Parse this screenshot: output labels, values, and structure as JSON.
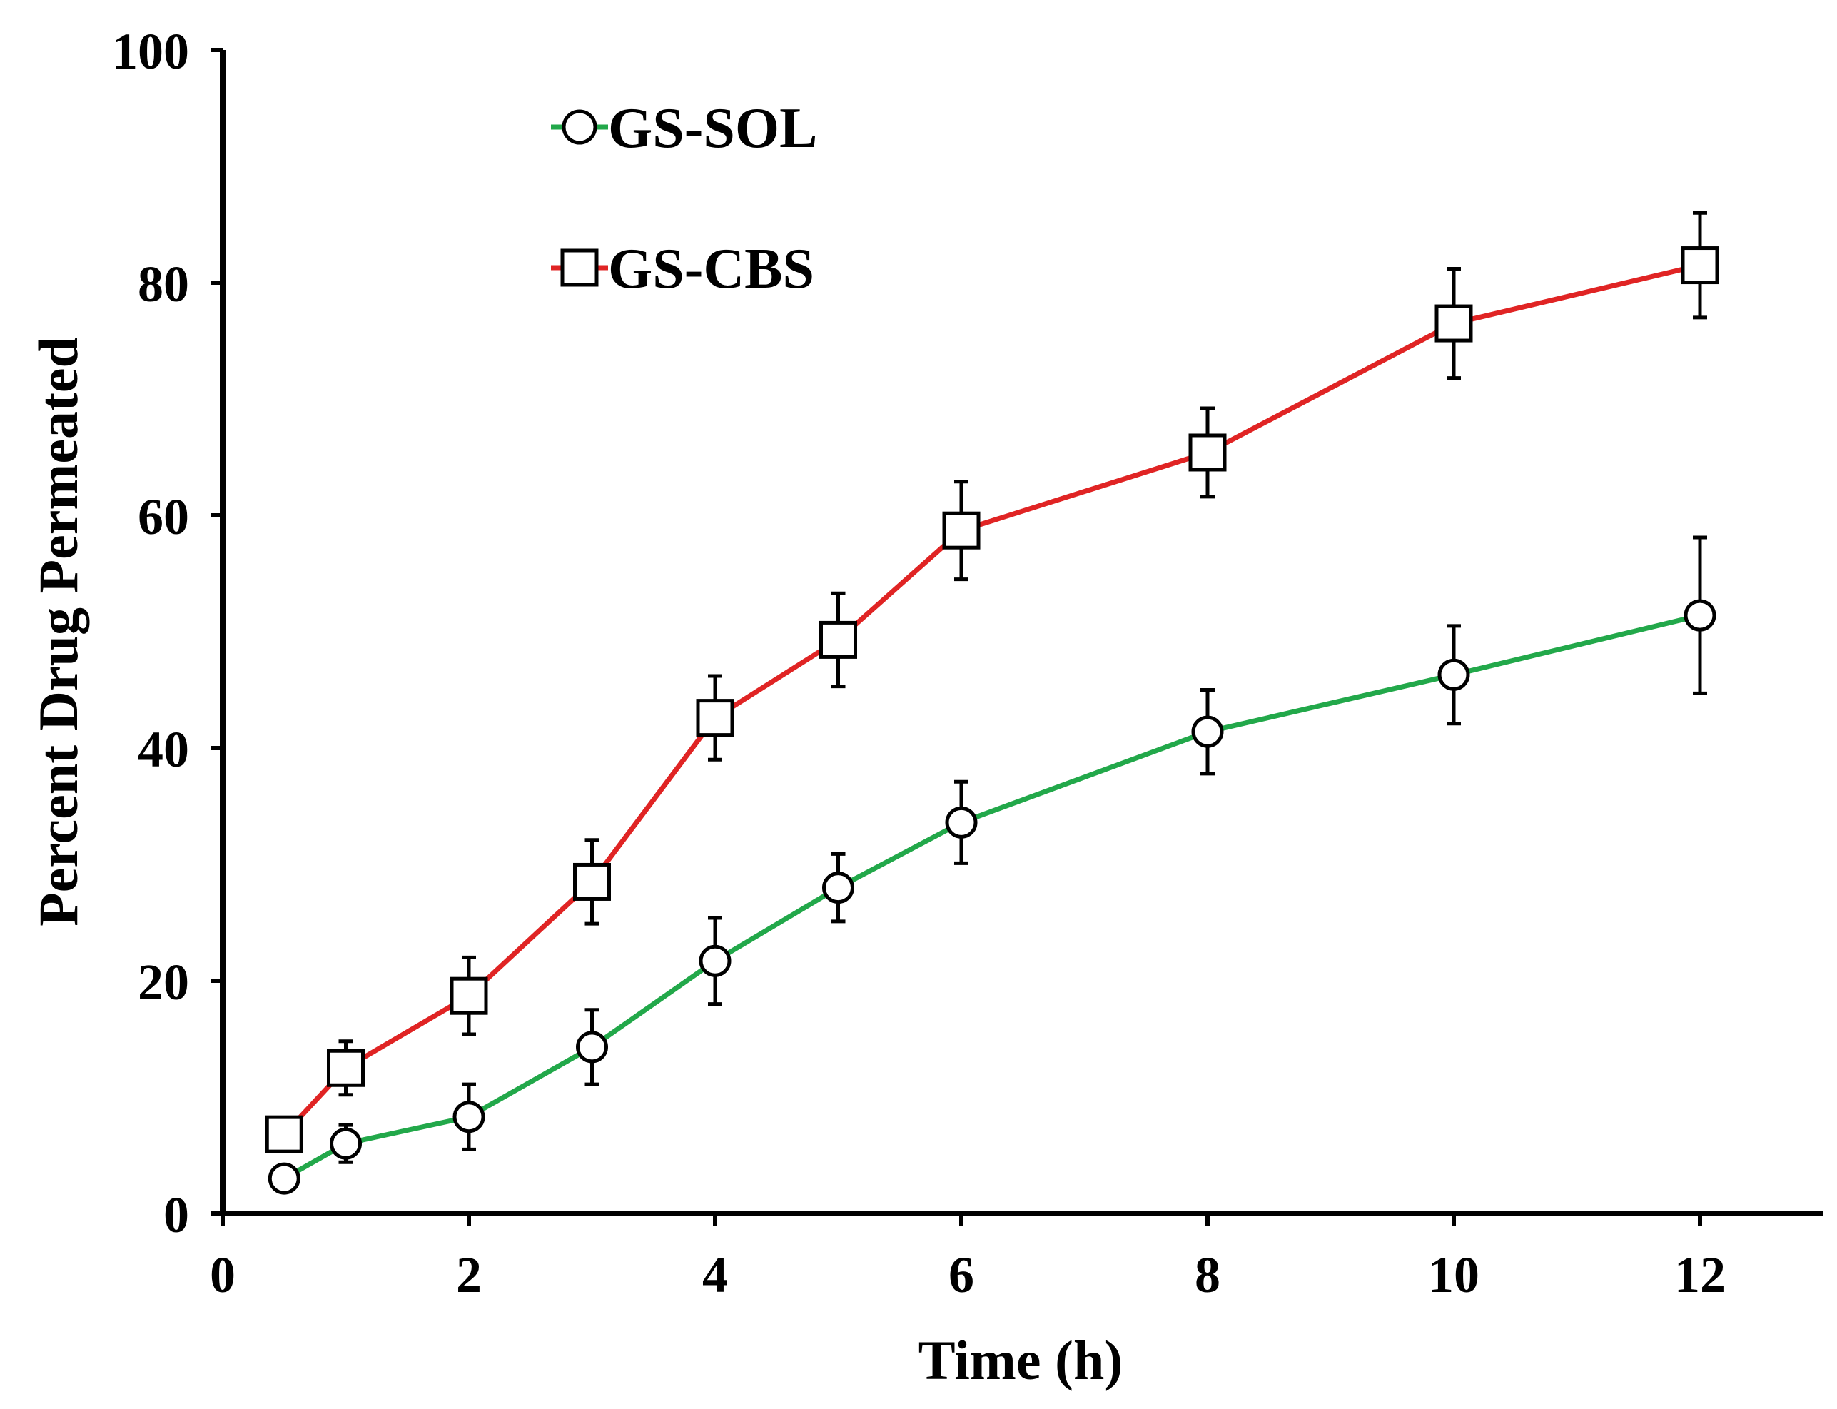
{
  "chart_data": {
    "type": "line",
    "title": "",
    "xlabel": "Time (h)",
    "ylabel": "Percent Drug Permeated",
    "xlim": [
      0,
      13
    ],
    "ylim": [
      0,
      100
    ],
    "xticks": [
      "0",
      "2",
      "4",
      "6",
      "8",
      "10",
      "12"
    ],
    "yticks": [
      "0",
      "20",
      "40",
      "60",
      "80",
      "100"
    ],
    "grid": false,
    "legend_position": "top-left",
    "x": [
      0.5,
      1,
      2,
      3,
      4,
      5,
      6,
      8,
      10,
      12
    ],
    "series": [
      {
        "name": "GS-SOL",
        "marker": "circle",
        "color": "#22a84a",
        "values": [
          3,
          6,
          8.3,
          14.3,
          21.7,
          28,
          33.6,
          41.4,
          46.3,
          51.4
        ],
        "errors": [
          0.8,
          1.6,
          2.8,
          3.2,
          3.7,
          2.9,
          3.5,
          3.6,
          4.2,
          6.7
        ]
      },
      {
        "name": "GS-CBS",
        "marker": "square",
        "color": "#e02424",
        "values": [
          6.8,
          12.5,
          18.7,
          28.5,
          42.6,
          49.3,
          58.7,
          65.4,
          76.5,
          81.5
        ],
        "errors": [
          1.2,
          2.3,
          3.3,
          3.6,
          3.6,
          4.0,
          4.2,
          3.8,
          4.7,
          4.5
        ]
      }
    ]
  }
}
